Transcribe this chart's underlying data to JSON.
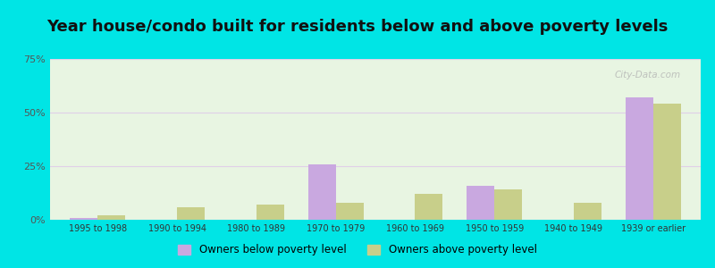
{
  "title": "Year house/condo built for residents below and above poverty levels",
  "categories": [
    "1995 to 1998",
    "1990 to 1994",
    "1980 to 1989",
    "1970 to 1979",
    "1960 to 1969",
    "1950 to 1959",
    "1940 to 1949",
    "1939 or earlier"
  ],
  "below_poverty": [
    1,
    0,
    0,
    26,
    0,
    16,
    0,
    57
  ],
  "above_poverty": [
    2,
    6,
    7,
    8,
    12,
    14,
    8,
    54
  ],
  "below_color": "#c9a8e0",
  "above_color": "#c8cf8a",
  "background_outer": "#00e5e5",
  "background_inner": "#e8f5e2",
  "grid_color": "#e0d0e8",
  "ylim": [
    0,
    75
  ],
  "yticks": [
    0,
    25,
    50,
    75
  ],
  "ytick_labels": [
    "0%",
    "25%",
    "50%",
    "75%"
  ],
  "legend_below": "Owners below poverty level",
  "legend_above": "Owners above poverty level",
  "title_fontsize": 13,
  "bar_width": 0.35
}
